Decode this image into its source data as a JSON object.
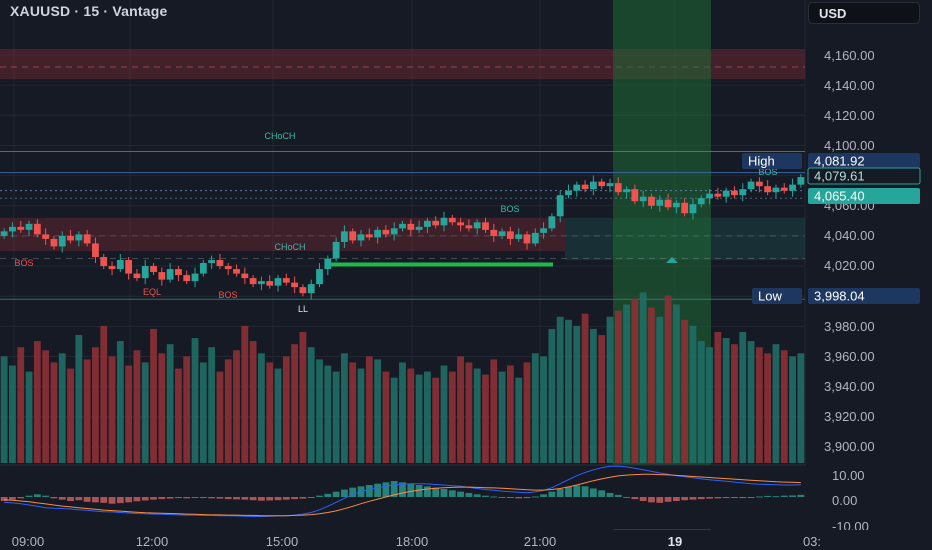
{
  "header": {
    "symbol": "XAUUSD · 15 · Vantage",
    "currency": "USD"
  },
  "colors": {
    "bg": "#161a25",
    "up": "#26a69a",
    "down": "#ef5350",
    "grid": "#232733",
    "axis_text": "#b2b5be",
    "supply_zone": "#7a2a33",
    "session_highlight": "#1f6b34"
  },
  "chart_data": [
    {
      "type": "candlestick",
      "timeframe": "15",
      "ylim": [
        3880,
        4175
      ],
      "y_ticks": [
        "4,160.00",
        "4,140.00",
        "4,120.00",
        "4,100.00",
        "4,080.00",
        "4,060.00",
        "4,040.00",
        "4,020.00",
        "3,980.00",
        "3,960.00",
        "3,940.00",
        "3,920.00",
        "3,900.00"
      ],
      "x_ticks": [
        "09:00",
        "12:00",
        "15:00",
        "18:00",
        "21:00",
        "19",
        "03:"
      ],
      "price_labels": [
        {
          "name": "High",
          "value": "4,081.92"
        },
        {
          "value": "4,079.61"
        },
        {
          "value": "4,065.40"
        },
        {
          "name": "Low",
          "value": "3,998.04"
        }
      ],
      "annotations": [
        "CHoCH",
        "BOS",
        "CHoCH",
        "BOS",
        "EQL",
        "BOS",
        "LL",
        "BOS"
      ],
      "close": [
        4043,
        4046,
        4044,
        4048,
        4041,
        4038,
        4033,
        4040,
        4037,
        4041,
        4035,
        4026,
        4020,
        4018,
        4024,
        4015,
        4012,
        4020,
        4016,
        4011,
        4018,
        4014,
        4010,
        4015,
        4022,
        4024,
        4020,
        4018,
        4015,
        4012,
        4008,
        4010,
        4007,
        4012,
        4009,
        4006,
        4002,
        4008,
        4018,
        4025,
        4036,
        4043,
        4037,
        4041,
        4039,
        4044,
        4041,
        4045,
        4048,
        4044,
        4046,
        4050,
        4047,
        4052,
        4049,
        4047,
        4045,
        4049,
        4044,
        4040,
        4043,
        4038,
        4041,
        4035,
        4042,
        4045,
        4053,
        4067,
        4070,
        4074,
        4071,
        4076,
        4073,
        4075,
        4069,
        4071,
        4063,
        4066,
        4060,
        4064,
        4059,
        4062,
        4055,
        4061,
        4065,
        4068,
        4066,
        4070,
        4067,
        4071,
        4076,
        4073,
        4069,
        4072,
        4070,
        4074,
        4079
      ],
      "volume": [
        35,
        32,
        38,
        30,
        40,
        37,
        33,
        36,
        31,
        42,
        34,
        38,
        45,
        35,
        40,
        32,
        37,
        33,
        44,
        36,
        39,
        31,
        35,
        41,
        33,
        38,
        30,
        34,
        37,
        45,
        40,
        36,
        33,
        31,
        35,
        39,
        43,
        38,
        34,
        32,
        30,
        36,
        33,
        31,
        35,
        34,
        30,
        28,
        33,
        31,
        29,
        30,
        28,
        32,
        30,
        35,
        33,
        31,
        29,
        34,
        30,
        32,
        28,
        33,
        36,
        35,
        44,
        48,
        47,
        45,
        49,
        44,
        42,
        48,
        50,
        52,
        54,
        56,
        51,
        48,
        55,
        52,
        47,
        45,
        40,
        38,
        43,
        41,
        39,
        43,
        40,
        38,
        36,
        39,
        37,
        35,
        36
      ],
      "volume_ylim": [
        0,
        64
      ],
      "macd_yticks": [
        "10.00",
        "0.00",
        "-10.00"
      ],
      "macd_ylim": [
        -12,
        12
      ],
      "macd_hist": [
        -1.5,
        -1.0,
        -0.5,
        0.5,
        1.0,
        0.5,
        -0.5,
        -1.0,
        -1.5,
        -1.2,
        -1.8,
        -2.0,
        -2.2,
        -2.5,
        -2.3,
        -2.0,
        -1.6,
        -1.3,
        -1.0,
        -0.8,
        -0.6,
        -0.4,
        -0.5,
        -0.3,
        -0.2,
        -0.5,
        -0.6,
        -0.8,
        -0.9,
        -1.0,
        -1.2,
        -1.4,
        -1.3,
        -1.2,
        -1.0,
        -0.8,
        -0.6,
        -0.2,
        0.5,
        1.2,
        2.0,
        2.8,
        3.5,
        4.0,
        4.5,
        5.0,
        5.5,
        6.0,
        5.5,
        5.0,
        4.5,
        4.0,
        3.5,
        3.0,
        2.5,
        2.0,
        1.5,
        1.0,
        0.5,
        0.2,
        0.0,
        -0.3,
        -0.5,
        -0.4,
        0.2,
        1.0,
        2.0,
        3.0,
        3.8,
        4.3,
        4.0,
        3.2,
        2.5,
        1.5,
        0.8,
        0.0,
        -0.8,
        -1.5,
        -2.0,
        -2.2,
        -1.8,
        -1.5,
        -1.2,
        -1.0,
        -0.8,
        -0.6,
        -0.5,
        -0.4,
        -0.3,
        -0.4,
        -0.2,
        0.2,
        0.4,
        0.3,
        0.5,
        0.6,
        0.8
      ],
      "macd_line": [
        -2,
        -2.2,
        -2.5,
        -3,
        -3.5,
        -4,
        -4.2,
        -4.3,
        -4.5,
        -4.8,
        -5,
        -5.3,
        -5.5,
        -5.6,
        -5.8,
        -6,
        -6.2,
        -6.3,
        -6.4,
        -6.5,
        -6.6,
        -6.7,
        -6.8,
        -6.8,
        -6.9,
        -6.9,
        -7,
        -7,
        -7.1,
        -7.2,
        -7.3,
        -7.3,
        -7.2,
        -7.1,
        -7,
        -6.8,
        -6.4,
        -5.8,
        -4.8,
        -3.5,
        -2,
        -0.5,
        1,
        2,
        2.8,
        3.5,
        4,
        4.5,
        4.8,
        5,
        5,
        4.9,
        4.7,
        4.5,
        4.2,
        4,
        3.6,
        3.2,
        2.8,
        2.5,
        2.2,
        2,
        1.8,
        1.6,
        1.9,
        2.5,
        3.5,
        5,
        6.5,
        8,
        9.2,
        10.2,
        11,
        11.5,
        11.6,
        11.3,
        10.8,
        10.2,
        9.6,
        9,
        8.5,
        8,
        7.6,
        7.2,
        6.8,
        6.5,
        6.2,
        5.9,
        5.6,
        5.3,
        5,
        4.8,
        4.7,
        4.6,
        4.5,
        4.5,
        4.6
      ],
      "signal_line": [
        -1,
        -1.2,
        -1.5,
        -1.8,
        -2.2,
        -2.6,
        -3,
        -3.4,
        -3.7,
        -4,
        -4.3,
        -4.6,
        -4.9,
        -5.1,
        -5.3,
        -5.5,
        -5.7,
        -5.9,
        -6,
        -6.1,
        -6.2,
        -6.3,
        -6.4,
        -6.5,
        -6.6,
        -6.7,
        -6.7,
        -6.8,
        -6.8,
        -6.9,
        -6.9,
        -7,
        -7,
        -7,
        -7,
        -6.9,
        -6.8,
        -6.6,
        -6.3,
        -5.8,
        -5.2,
        -4.4,
        -3.5,
        -2.5,
        -1.6,
        -0.8,
        0,
        0.8,
        1.5,
        2.1,
        2.6,
        3,
        3.3,
        3.5,
        3.6,
        3.7,
        3.7,
        3.6,
        3.5,
        3.4,
        3.3,
        3.1,
        2.9,
        2.7,
        2.6,
        2.6,
        2.8,
        3.2,
        3.8,
        4.5,
        5.3,
        6.1,
        6.8,
        7.4,
        7.9,
        8.2,
        8.4,
        8.5,
        8.5,
        8.4,
        8.3,
        8.1,
        7.9,
        7.7,
        7.5,
        7.3,
        7.1,
        6.9,
        6.7,
        6.5,
        6.3,
        6.1,
        5.9,
        5.7,
        5.6,
        5.5,
        5.4
      ]
    }
  ]
}
